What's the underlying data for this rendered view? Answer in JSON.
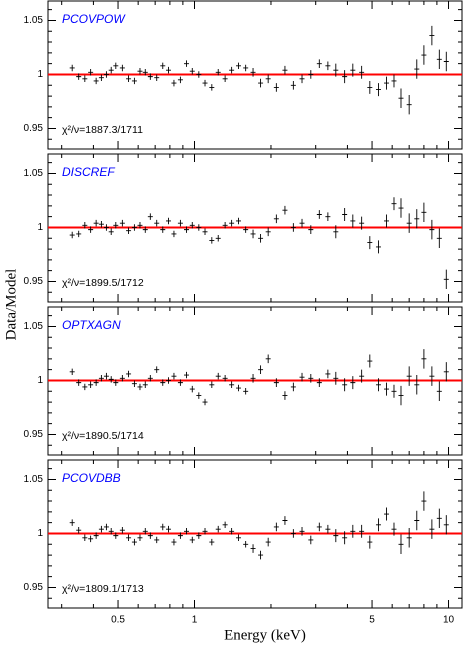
{
  "chart_data": [
    {
      "type": "errorbar",
      "label": "PCOVPOW",
      "annotation": "χ²/ν=1887.3/1711",
      "ylabel": "Data/Model",
      "x": [
        0.33,
        0.35,
        0.37,
        0.39,
        0.41,
        0.43,
        0.45,
        0.47,
        0.49,
        0.52,
        0.55,
        0.58,
        0.61,
        0.64,
        0.67,
        0.71,
        0.75,
        0.79,
        0.83,
        0.88,
        0.93,
        0.98,
        1.04,
        1.1,
        1.17,
        1.24,
        1.32,
        1.4,
        1.49,
        1.59,
        1.7,
        1.82,
        1.95,
        2.1,
        2.27,
        2.45,
        2.65,
        2.87,
        3.1,
        3.35,
        3.6,
        3.9,
        4.2,
        4.55,
        4.9,
        5.3,
        5.7,
        6.1,
        6.5,
        7.0,
        7.5,
        8.0,
        8.6,
        9.2,
        9.8
      ],
      "values": [
        1.006,
        0.998,
        0.996,
        1.002,
        0.994,
        0.997,
        1.0,
        1.004,
        1.008,
        1.006,
        0.996,
        0.994,
        1.003,
        1.002,
        0.998,
        0.997,
        1.008,
        1.004,
        0.992,
        0.995,
        1.01,
        1.003,
        1.0,
        0.992,
        0.988,
        1.002,
        0.996,
        1.004,
        1.008,
        1.006,
        1.002,
        0.992,
        0.996,
        0.988,
        1.004,
        0.99,
        0.996,
        1.0,
        1.01,
        1.008,
        1.004,
        0.998,
        1.004,
        1.002,
        0.988,
        0.986,
        0.992,
        0.994,
        0.978,
        0.972,
        1.005,
        1.018,
        1.036,
        1.014,
        1.012
      ],
      "yerr": [
        0.003,
        0.003,
        0.003,
        0.003,
        0.003,
        0.003,
        0.003,
        0.003,
        0.003,
        0.003,
        0.003,
        0.003,
        0.003,
        0.003,
        0.003,
        0.003,
        0.003,
        0.003,
        0.003,
        0.003,
        0.003,
        0.003,
        0.003,
        0.003,
        0.003,
        0.003,
        0.003,
        0.003,
        0.003,
        0.003,
        0.004,
        0.004,
        0.004,
        0.004,
        0.004,
        0.004,
        0.004,
        0.004,
        0.004,
        0.004,
        0.006,
        0.006,
        0.006,
        0.006,
        0.006,
        0.006,
        0.006,
        0.006,
        0.009,
        0.009,
        0.009,
        0.009,
        0.009,
        0.009,
        0.009
      ],
      "color": "#000000",
      "reference_line": 1,
      "reference_color": "#ff0000",
      "label_color": "#0000ff",
      "log_x": true,
      "xlim": [
        0.265,
        11.3
      ],
      "xticks": [
        0.5,
        1,
        5,
        10
      ],
      "xminor": [
        0.3,
        0.4,
        0.6,
        0.7,
        0.8,
        0.9,
        2,
        3,
        4,
        6,
        7,
        8,
        9
      ],
      "show_xtick_labels": false,
      "ylim": [
        0.931,
        1.068
      ],
      "yticks": [
        0.95,
        1,
        1.05
      ],
      "yminor": [
        0.94,
        0.96,
        0.97,
        0.98,
        0.99,
        1.01,
        1.02,
        1.03,
        1.04,
        1.06
      ]
    },
    {
      "type": "errorbar",
      "label": "DISCREF",
      "annotation": "χ²/ν=1899.5/1712",
      "x": [
        0.33,
        0.35,
        0.37,
        0.39,
        0.41,
        0.43,
        0.45,
        0.47,
        0.49,
        0.52,
        0.55,
        0.58,
        0.61,
        0.64,
        0.67,
        0.71,
        0.75,
        0.79,
        0.83,
        0.88,
        0.93,
        0.98,
        1.04,
        1.1,
        1.17,
        1.24,
        1.32,
        1.4,
        1.49,
        1.59,
        1.7,
        1.82,
        1.95,
        2.1,
        2.27,
        2.45,
        2.65,
        2.87,
        3.1,
        3.35,
        3.6,
        3.9,
        4.2,
        4.55,
        4.9,
        5.3,
        5.7,
        6.1,
        6.5,
        7.0,
        7.5,
        8.0,
        8.6,
        9.2,
        9.8
      ],
      "values": [
        0.993,
        0.994,
        1.002,
        0.998,
        1.004,
        1.003,
        1.0,
        0.996,
        1.002,
        1.004,
        0.997,
        1.0,
        1.002,
        0.998,
        1.01,
        1.004,
        0.998,
        1.006,
        0.994,
        1.004,
        0.998,
        1.002,
        1.0,
        0.996,
        0.988,
        0.99,
        1.002,
        1.004,
        1.006,
        0.998,
        0.994,
        0.99,
        0.996,
        1.008,
        1.016,
        1.0,
        1.004,
        0.998,
        1.012,
        1.01,
        0.996,
        1.012,
        1.006,
        1.004,
        0.986,
        0.982,
        1.006,
        1.022,
        1.018,
        1.004,
        1.008,
        1.014,
        0.998,
        0.99,
        0.952
      ],
      "yerr": [
        0.003,
        0.003,
        0.003,
        0.003,
        0.003,
        0.003,
        0.003,
        0.003,
        0.003,
        0.003,
        0.003,
        0.003,
        0.003,
        0.003,
        0.003,
        0.003,
        0.003,
        0.003,
        0.003,
        0.003,
        0.003,
        0.003,
        0.003,
        0.003,
        0.003,
        0.003,
        0.003,
        0.003,
        0.003,
        0.003,
        0.004,
        0.004,
        0.004,
        0.004,
        0.004,
        0.004,
        0.004,
        0.004,
        0.004,
        0.004,
        0.006,
        0.006,
        0.006,
        0.006,
        0.006,
        0.006,
        0.006,
        0.006,
        0.009,
        0.009,
        0.009,
        0.009,
        0.009,
        0.009,
        0.009
      ],
      "color": "#000000",
      "reference_line": 1,
      "reference_color": "#ff0000",
      "label_color": "#0000ff",
      "log_x": true,
      "xlim": [
        0.265,
        11.3
      ],
      "xticks": [
        0.5,
        1,
        5,
        10
      ],
      "xminor": [
        0.3,
        0.4,
        0.6,
        0.7,
        0.8,
        0.9,
        2,
        3,
        4,
        6,
        7,
        8,
        9
      ],
      "show_xtick_labels": false,
      "ylim": [
        0.931,
        1.068
      ],
      "yticks": [
        0.95,
        1,
        1.05
      ],
      "yminor": [
        0.94,
        0.96,
        0.97,
        0.98,
        0.99,
        1.01,
        1.02,
        1.03,
        1.04,
        1.06
      ]
    },
    {
      "type": "errorbar",
      "label": "OPTXAGN",
      "annotation": "χ²/ν=1890.5/1714",
      "x": [
        0.33,
        0.35,
        0.37,
        0.39,
        0.41,
        0.43,
        0.45,
        0.47,
        0.49,
        0.52,
        0.55,
        0.58,
        0.61,
        0.64,
        0.67,
        0.71,
        0.75,
        0.79,
        0.83,
        0.88,
        0.93,
        0.98,
        1.04,
        1.1,
        1.17,
        1.24,
        1.32,
        1.4,
        1.49,
        1.59,
        1.7,
        1.82,
        1.95,
        2.1,
        2.27,
        2.45,
        2.65,
        2.87,
        3.1,
        3.35,
        3.6,
        3.9,
        4.2,
        4.55,
        4.9,
        5.3,
        5.7,
        6.1,
        6.5,
        7.0,
        7.5,
        8.0,
        8.6,
        9.2,
        9.8
      ],
      "values": [
        1.008,
        0.998,
        0.994,
        0.996,
        0.998,
        1.002,
        1.004,
        1.001,
        0.998,
        1.002,
        1.006,
        0.997,
        0.994,
        0.996,
        1.002,
        1.01,
        0.998,
        1.0,
        1.004,
        0.998,
        1.005,
        0.992,
        0.986,
        0.98,
        0.996,
        1.004,
        1.002,
        0.996,
        0.993,
        0.99,
        1.002,
        1.01,
        1.02,
        0.998,
        0.986,
        0.994,
        1.003,
        1.002,
        0.998,
        1.006,
        1.002,
        0.996,
        0.998,
        1.004,
        1.018,
        0.996,
        0.992,
        0.99,
        0.986,
        1.004,
        0.996,
        1.02,
        1.004,
        0.99,
        1.008
      ],
      "yerr": [
        0.003,
        0.003,
        0.003,
        0.003,
        0.003,
        0.003,
        0.003,
        0.003,
        0.003,
        0.003,
        0.003,
        0.003,
        0.003,
        0.003,
        0.003,
        0.003,
        0.003,
        0.003,
        0.003,
        0.003,
        0.003,
        0.003,
        0.003,
        0.003,
        0.003,
        0.003,
        0.003,
        0.003,
        0.003,
        0.003,
        0.004,
        0.004,
        0.004,
        0.004,
        0.004,
        0.004,
        0.004,
        0.004,
        0.004,
        0.004,
        0.006,
        0.006,
        0.006,
        0.006,
        0.006,
        0.006,
        0.006,
        0.006,
        0.009,
        0.009,
        0.009,
        0.009,
        0.009,
        0.009,
        0.009
      ],
      "color": "#000000",
      "reference_line": 1,
      "reference_color": "#ff0000",
      "label_color": "#0000ff",
      "log_x": true,
      "xlim": [
        0.265,
        11.3
      ],
      "xticks": [
        0.5,
        1,
        5,
        10
      ],
      "xminor": [
        0.3,
        0.4,
        0.6,
        0.7,
        0.8,
        0.9,
        2,
        3,
        4,
        6,
        7,
        8,
        9
      ],
      "show_xtick_labels": false,
      "ylim": [
        0.931,
        1.068
      ],
      "yticks": [
        0.95,
        1,
        1.05
      ],
      "yminor": [
        0.94,
        0.96,
        0.97,
        0.98,
        0.99,
        1.01,
        1.02,
        1.03,
        1.04,
        1.06
      ]
    },
    {
      "type": "errorbar",
      "label": "PCOVDBB",
      "annotation": "χ²/ν=1809.1/1713",
      "xlabel": "Energy (keV)",
      "x": [
        0.33,
        0.35,
        0.37,
        0.39,
        0.41,
        0.43,
        0.45,
        0.47,
        0.49,
        0.52,
        0.55,
        0.58,
        0.61,
        0.64,
        0.67,
        0.71,
        0.75,
        0.79,
        0.83,
        0.88,
        0.93,
        0.98,
        1.04,
        1.1,
        1.17,
        1.24,
        1.32,
        1.4,
        1.49,
        1.59,
        1.7,
        1.82,
        1.95,
        2.1,
        2.27,
        2.45,
        2.65,
        2.87,
        3.1,
        3.35,
        3.6,
        3.9,
        4.2,
        4.55,
        4.9,
        5.3,
        5.7,
        6.1,
        6.5,
        7.0,
        7.5,
        8.0,
        8.6,
        9.2,
        9.8
      ],
      "values": [
        1.01,
        1.003,
        0.996,
        0.995,
        0.998,
        1.004,
        1.006,
        1.002,
        0.998,
        1.003,
        0.996,
        0.992,
        0.996,
        1.002,
        0.998,
        0.994,
        1.006,
        1.004,
        0.992,
        0.998,
        1.002,
        0.994,
        0.998,
        1.002,
        0.992,
        1.004,
        1.008,
        1.002,
        0.996,
        0.99,
        0.986,
        0.98,
        0.992,
        1.006,
        1.012,
        1.0,
        1.002,
        0.994,
        1.006,
        1.004,
        0.998,
        0.996,
        1.002,
        1.002,
        0.992,
        1.008,
        1.018,
        1.004,
        0.99,
        0.996,
        1.012,
        1.03,
        1.004,
        1.014,
        1.008
      ],
      "yerr": [
        0.003,
        0.003,
        0.003,
        0.003,
        0.003,
        0.003,
        0.003,
        0.003,
        0.003,
        0.003,
        0.003,
        0.003,
        0.003,
        0.003,
        0.003,
        0.003,
        0.003,
        0.003,
        0.003,
        0.003,
        0.003,
        0.003,
        0.003,
        0.003,
        0.003,
        0.003,
        0.003,
        0.003,
        0.003,
        0.003,
        0.004,
        0.004,
        0.004,
        0.004,
        0.004,
        0.004,
        0.004,
        0.004,
        0.004,
        0.004,
        0.006,
        0.006,
        0.006,
        0.006,
        0.006,
        0.006,
        0.006,
        0.006,
        0.009,
        0.009,
        0.009,
        0.009,
        0.009,
        0.009,
        0.009
      ],
      "color": "#000000",
      "reference_line": 1,
      "reference_color": "#ff0000",
      "label_color": "#0000ff",
      "log_x": true,
      "xlim": [
        0.265,
        11.3
      ],
      "xticks": [
        0.5,
        1,
        5,
        10
      ],
      "xminor": [
        0.3,
        0.4,
        0.6,
        0.7,
        0.8,
        0.9,
        2,
        3,
        4,
        6,
        7,
        8,
        9
      ],
      "show_xtick_labels": true,
      "ylim": [
        0.931,
        1.068
      ],
      "yticks": [
        0.95,
        1,
        1.05
      ],
      "yminor": [
        0.94,
        0.96,
        0.97,
        0.98,
        0.99,
        1.01,
        1.02,
        1.03,
        1.04,
        1.06
      ]
    }
  ]
}
